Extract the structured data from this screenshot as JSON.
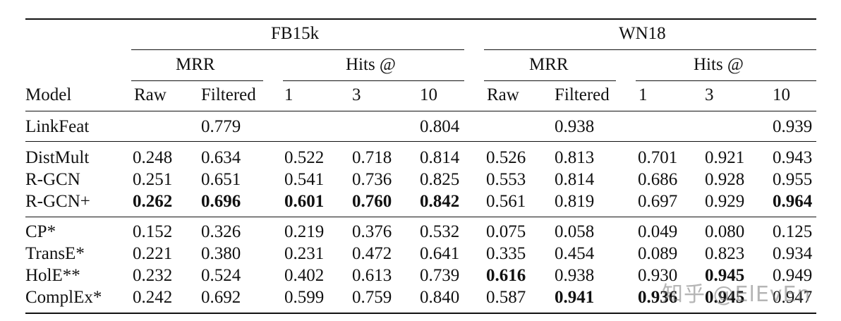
{
  "header": {
    "groups": [
      "FB15k",
      "WN18"
    ],
    "subgroups": [
      "MRR",
      "Hits @",
      "MRR",
      "Hits @"
    ],
    "model_label": "Model",
    "columns": [
      "Raw",
      "Filtered",
      "1",
      "3",
      "10",
      "Raw",
      "Filtered",
      "1",
      "3",
      "10"
    ]
  },
  "rows": [
    {
      "model": "LinkFeat",
      "values": [
        "",
        "0.779",
        "",
        "",
        "0.804",
        "",
        "0.938",
        "",
        "",
        "0.939"
      ],
      "bold": []
    },
    {
      "model": "DistMult",
      "values": [
        "0.248",
        "0.634",
        "0.522",
        "0.718",
        "0.814",
        "0.526",
        "0.813",
        "0.701",
        "0.921",
        "0.943"
      ],
      "bold": []
    },
    {
      "model": "R-GCN",
      "values": [
        "0.251",
        "0.651",
        "0.541",
        "0.736",
        "0.825",
        "0.553",
        "0.814",
        "0.686",
        "0.928",
        "0.955"
      ],
      "bold": []
    },
    {
      "model": "R-GCN+",
      "values": [
        "0.262",
        "0.696",
        "0.601",
        "0.760",
        "0.842",
        "0.561",
        "0.819",
        "0.697",
        "0.929",
        "0.964"
      ],
      "bold": [
        0,
        1,
        2,
        3,
        4,
        9
      ]
    },
    {
      "model": "CP*",
      "values": [
        "0.152",
        "0.326",
        "0.219",
        "0.376",
        "0.532",
        "0.075",
        "0.058",
        "0.049",
        "0.080",
        "0.125"
      ],
      "bold": []
    },
    {
      "model": "TransE*",
      "values": [
        "0.221",
        "0.380",
        "0.231",
        "0.472",
        "0.641",
        "0.335",
        "0.454",
        "0.089",
        "0.823",
        "0.934"
      ],
      "bold": []
    },
    {
      "model": "HolE**",
      "values": [
        "0.232",
        "0.524",
        "0.402",
        "0.613",
        "0.739",
        "0.616",
        "0.938",
        "0.930",
        "0.945",
        "0.949"
      ],
      "bold": [
        5,
        8
      ]
    },
    {
      "model": "ComplEx*",
      "values": [
        "0.242",
        "0.692",
        "0.599",
        "0.759",
        "0.840",
        "0.587",
        "0.941",
        "0.936",
        "0.945",
        "0.947"
      ],
      "bold": [
        6,
        7,
        8
      ]
    }
  ],
  "watermark": "知乎 @ElEvEn"
}
